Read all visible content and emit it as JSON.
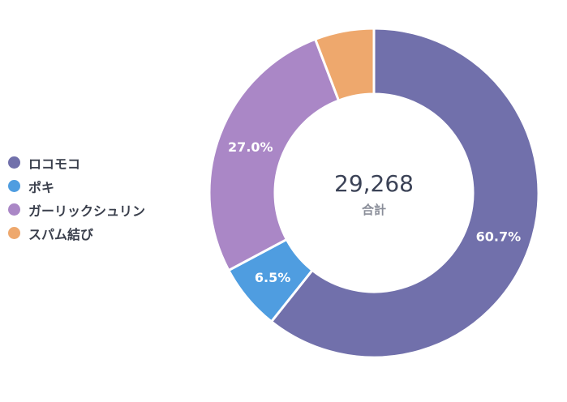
{
  "chart_data": {
    "type": "pie",
    "variant": "donut",
    "total": {
      "value": "29,268",
      "label": "合計"
    },
    "series": [
      {
        "name": "ロコモコ",
        "percent": 60.7,
        "percent_label": "60.7%",
        "color": "#7170ab"
      },
      {
        "name": "ポキ",
        "percent": 6.5,
        "percent_label": "6.5%",
        "color": "#4f9de0"
      },
      {
        "name": "ガーリックシュリン",
        "percent": 27.0,
        "percent_label": "27.0%",
        "color": "#aa87c6"
      },
      {
        "name": "スパム結び",
        "percent": 5.8,
        "percent_label": "",
        "color": "#eea86d"
      }
    ],
    "legend_position": "left",
    "start_angle": "top",
    "direction": "clockwise"
  }
}
